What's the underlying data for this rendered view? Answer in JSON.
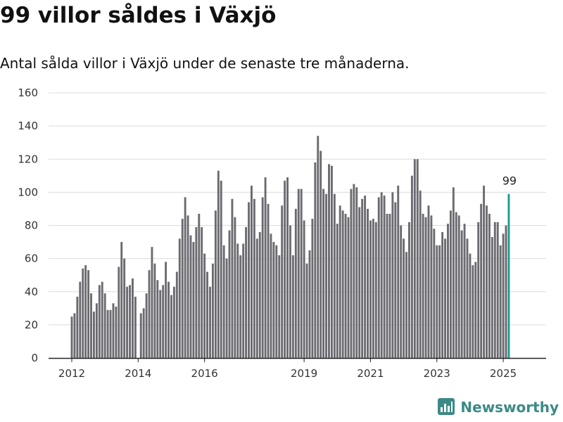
{
  "header": {
    "title": "99 villor såldes i Växjö",
    "subtitle": "Antal sålda villor i Växjö under de senaste tre månaderna."
  },
  "brand": {
    "name": "Newsworthy",
    "logo_icon": "bar-chart-logo-icon",
    "color": "#3b8a86"
  },
  "chart_data": {
    "type": "bar",
    "title": "99 villor såldes i Växjö",
    "subtitle": "Antal sålda villor i Växjö under de senaste tre månaderna.",
    "xlabel": "",
    "ylabel": "",
    "x_start": "2012-01",
    "x_unit": "month",
    "x_ticks": [
      "2012",
      "2014",
      "2016",
      "2019",
      "2021",
      "2023",
      "2025"
    ],
    "y_ticks": [
      0,
      20,
      40,
      60,
      80,
      100,
      120,
      140,
      160
    ],
    "ylim": [
      0,
      160
    ],
    "grid": true,
    "bar_color": "#6b6a70",
    "highlight_color": "#1a9c8e",
    "highlight_label": "99",
    "values": [
      25,
      27,
      37,
      46,
      54,
      56,
      53,
      39,
      28,
      33,
      44,
      46,
      39,
      29,
      29,
      33,
      31,
      55,
      70,
      60,
      43,
      44,
      48,
      37,
      null,
      27,
      30,
      39,
      53,
      67,
      57,
      47,
      41,
      44,
      58,
      46,
      38,
      43,
      52,
      72,
      84,
      97,
      86,
      74,
      70,
      79,
      87,
      79,
      63,
      52,
      43,
      57,
      89,
      113,
      107,
      68,
      60,
      77,
      96,
      85,
      69,
      62,
      69,
      79,
      94,
      104,
      96,
      72,
      76,
      97,
      109,
      93,
      75,
      70,
      68,
      62,
      92,
      107,
      109,
      80,
      62,
      90,
      102,
      102,
      83,
      57,
      65,
      84,
      118,
      134,
      125,
      102,
      99,
      117,
      116,
      99,
      81,
      92,
      89,
      87,
      85,
      102,
      105,
      103,
      91,
      96,
      98,
      90,
      83,
      84,
      82,
      97,
      100,
      98,
      87,
      87,
      100,
      94,
      104,
      80,
      72,
      64,
      82,
      110,
      120,
      120,
      101,
      87,
      85,
      92,
      86,
      78,
      68,
      68,
      76,
      72,
      81,
      89,
      103,
      88,
      86,
      77,
      81,
      72,
      63,
      56,
      58,
      82,
      93,
      104,
      92,
      87,
      73,
      82,
      82,
      68,
      75,
      80,
      99
    ]
  }
}
